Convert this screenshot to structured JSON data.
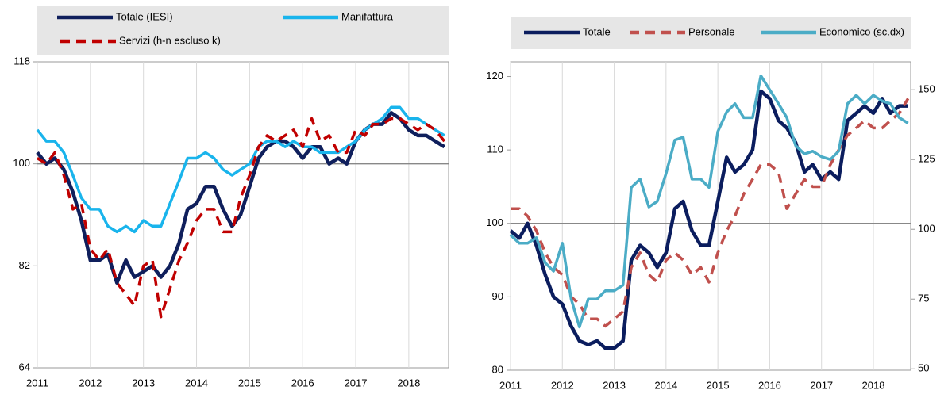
{
  "chart_data": [
    {
      "type": "line",
      "x": [
        2011.0,
        2011.17,
        2011.33,
        2011.5,
        2011.67,
        2011.83,
        2012.0,
        2012.17,
        2012.33,
        2012.5,
        2012.67,
        2012.83,
        2013.0,
        2013.17,
        2013.33,
        2013.5,
        2013.67,
        2013.83,
        2014.0,
        2014.17,
        2014.33,
        2014.5,
        2014.67,
        2014.83,
        2015.0,
        2015.17,
        2015.33,
        2015.5,
        2015.67,
        2015.83,
        2016.0,
        2016.17,
        2016.33,
        2016.5,
        2016.67,
        2016.83,
        2017.0,
        2017.17,
        2017.33,
        2017.5,
        2017.67,
        2017.83,
        2018.0,
        2018.17,
        2018.33,
        2018.5,
        2018.67
      ],
      "xlim": [
        2011,
        2018.75
      ],
      "xticks": [
        2011,
        2012,
        2013,
        2014,
        2015,
        2016,
        2017,
        2018
      ],
      "ylim": [
        64,
        118
      ],
      "yticks": [
        64,
        82,
        100,
        118
      ],
      "reference_line": 100,
      "grid": true,
      "series": [
        {
          "name": "Totale (IESI)",
          "color": "#0f1f5c",
          "dash": false,
          "values": [
            102,
            100,
            101,
            99,
            95,
            90,
            83,
            83,
            84,
            79,
            83,
            80,
            81,
            82,
            80,
            82,
            86,
            92,
            93,
            96,
            96,
            92,
            89,
            91,
            96,
            101,
            103,
            104,
            104,
            103,
            101,
            103,
            103,
            100,
            101,
            100,
            104,
            106,
            107,
            107,
            109,
            108,
            106,
            105,
            105,
            104,
            103
          ]
        },
        {
          "name": "Manifattura",
          "color": "#19b4ec",
          "dash": false,
          "values": [
            106,
            104,
            104,
            102,
            98,
            94,
            92,
            92,
            89,
            88,
            89,
            88,
            90,
            89,
            89,
            93,
            97,
            101,
            101,
            102,
            101,
            99,
            98,
            99,
            100,
            103,
            104,
            104,
            103,
            104,
            103,
            103,
            102,
            102,
            102,
            103,
            104,
            106,
            107,
            108,
            110,
            110,
            108,
            108,
            107,
            106,
            105
          ]
        },
        {
          "name": "Servizi (h-n escluso k)",
          "color": "#c00000",
          "dash": true,
          "values": [
            101,
            100,
            102,
            98,
            92,
            93,
            85,
            83,
            85,
            79,
            77,
            75,
            82,
            83,
            73,
            78,
            83,
            86,
            90,
            92,
            92,
            88,
            88,
            94,
            98,
            103,
            105,
            104,
            105,
            106,
            103,
            108,
            104,
            105,
            102,
            102,
            106,
            105,
            107,
            107,
            108,
            108,
            107,
            106,
            107,
            106,
            104
          ]
        }
      ]
    },
    {
      "type": "line",
      "x": [
        2011.0,
        2011.17,
        2011.33,
        2011.5,
        2011.67,
        2011.83,
        2012.0,
        2012.17,
        2012.33,
        2012.5,
        2012.67,
        2012.83,
        2013.0,
        2013.17,
        2013.33,
        2013.5,
        2013.67,
        2013.83,
        2014.0,
        2014.17,
        2014.33,
        2014.5,
        2014.67,
        2014.83,
        2015.0,
        2015.17,
        2015.33,
        2015.5,
        2015.67,
        2015.83,
        2016.0,
        2016.17,
        2016.33,
        2016.5,
        2016.67,
        2016.83,
        2017.0,
        2017.17,
        2017.33,
        2017.5,
        2017.67,
        2017.83,
        2018.0,
        2018.17,
        2018.33,
        2018.5,
        2018.67
      ],
      "xlim": [
        2011,
        2018.72
      ],
      "xticks": [
        2011,
        2012,
        2013,
        2014,
        2015,
        2016,
        2017,
        2018
      ],
      "ylim": [
        80,
        122
      ],
      "yticks": [
        80,
        90,
        100,
        110,
        120
      ],
      "y2lim": [
        49.5,
        160
      ],
      "y2ticks": [
        50,
        75,
        100,
        125,
        150
      ],
      "reference_line": 100,
      "grid": true,
      "series": [
        {
          "name": "Totale",
          "color": "#0b1d5e",
          "dash": false,
          "values": [
            99,
            98,
            100,
            97,
            93,
            90,
            89,
            86,
            84,
            83.5,
            84,
            83,
            83,
            84,
            95,
            97,
            96,
            94,
            96,
            102,
            103,
            99,
            97,
            97,
            103,
            109,
            107,
            108,
            110,
            118,
            117,
            114,
            113,
            111,
            107,
            108,
            106,
            107,
            106,
            114,
            115,
            116,
            115,
            117,
            115,
            116,
            116
          ]
        },
        {
          "name": "Personale",
          "color": "#c0504d",
          "dash": true,
          "values": [
            102,
            102,
            101,
            99,
            96,
            94,
            93,
            90,
            89,
            87,
            87,
            86,
            87,
            88,
            94,
            96,
            93,
            92,
            95,
            96,
            95,
            93,
            94,
            92,
            96,
            99,
            101,
            104,
            106,
            108,
            108,
            107,
            102,
            104,
            106,
            105,
            105,
            108,
            110,
            112,
            113,
            114,
            113,
            113,
            114,
            115,
            117
          ]
        },
        {
          "name": "Economico (sc.dx)",
          "color": "#4bacc6",
          "dash": false,
          "axis": "y2",
          "values": [
            98,
            95,
            95,
            97,
            88,
            85,
            95,
            75,
            65,
            75,
            75,
            78,
            78,
            80,
            115,
            118,
            108,
            110,
            120,
            132,
            133,
            118,
            118,
            115,
            135,
            142,
            145,
            140,
            140,
            155,
            150,
            145,
            140,
            130,
            127,
            128,
            126,
            125,
            128,
            145,
            148,
            145,
            148,
            146,
            145,
            140,
            138
          ]
        }
      ]
    }
  ]
}
